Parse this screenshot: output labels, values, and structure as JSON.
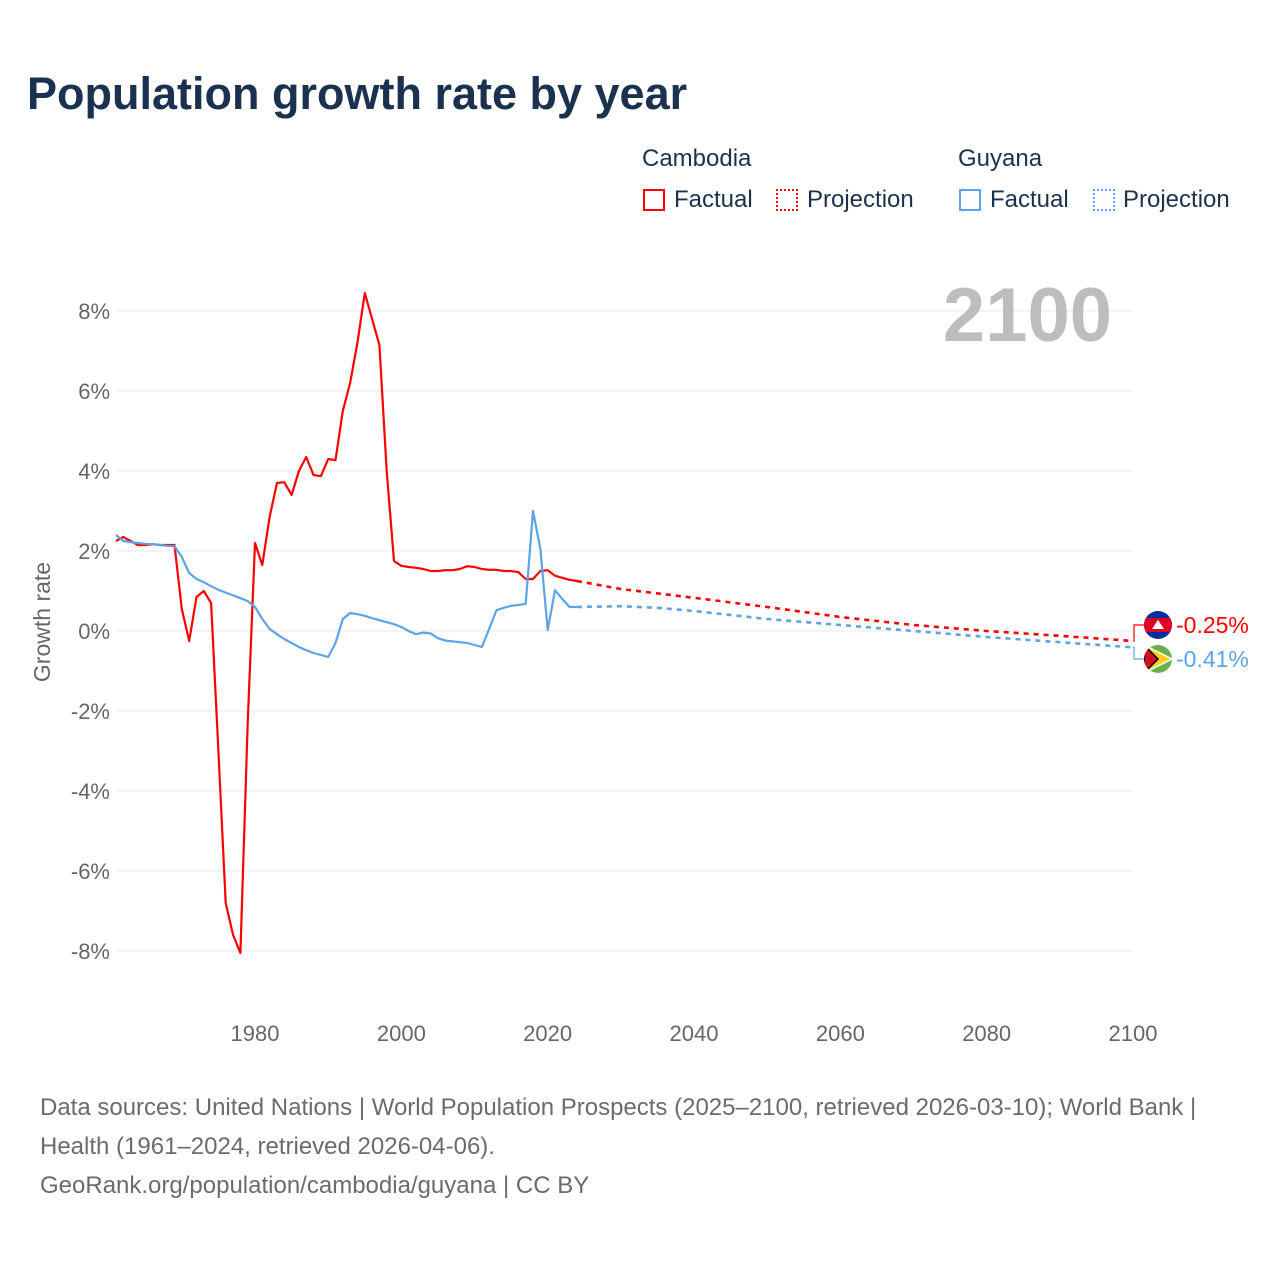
{
  "title": "Population growth rate by year",
  "legend": {
    "groups": [
      {
        "name": "Cambodia",
        "factual": "Factual",
        "projection": "Projection",
        "color": "#ff0000"
      },
      {
        "name": "Guyana",
        "factual": "Factual",
        "projection": "Projection",
        "color": "#5ba4e8"
      }
    ]
  },
  "current_year": "2100",
  "footer": {
    "sources": "Data sources: United Nations | World Population Prospects (2025–2100, retrieved 2026-03-10); World Bank | Health (1961–2024, retrieved 2026-04-06).",
    "link": "GeoRank.org/population/cambodia/guyana | CC BY"
  },
  "chart_data": {
    "type": "line",
    "ylabel": "Growth rate",
    "xlabel": "",
    "xlim": [
      1961,
      2100
    ],
    "ylim": [
      -9,
      9
    ],
    "x_ticks": [
      1980,
      2000,
      2020,
      2040,
      2060,
      2080,
      2100
    ],
    "x_tick_labels": [
      "1980",
      "2000",
      "2020",
      "2040",
      "2060",
      "2080",
      "2100"
    ],
    "y_ticks": [
      8,
      6,
      4,
      2,
      0,
      -2,
      -4,
      -6,
      -8
    ],
    "y_tick_labels": [
      "8%",
      "6%",
      "4%",
      "2%",
      "0%",
      "-2%",
      "-4%",
      "-6%",
      "-8%"
    ],
    "grid": true,
    "series": [
      {
        "name": "Cambodia",
        "color": "#ff0000",
        "end_label": "-0.25%",
        "factual": {
          "x": [
            1961,
            1962,
            1963,
            1964,
            1965,
            1966,
            1967,
            1968,
            1969,
            1970,
            1971,
            1972,
            1973,
            1974,
            1975,
            1976,
            1977,
            1978,
            1979,
            1980,
            1981,
            1982,
            1983,
            1984,
            1985,
            1986,
            1987,
            1988,
            1989,
            1990,
            1991,
            1992,
            1993,
            1994,
            1995,
            1996,
            1997,
            1998,
            1999,
            2000,
            2001,
            2002,
            2003,
            2004,
            2005,
            2006,
            2007,
            2008,
            2009,
            2010,
            2011,
            2012,
            2013,
            2014,
            2015,
            2016,
            2017,
            2018,
            2019,
            2020,
            2021,
            2022,
            2023,
            2024
          ],
          "y": [
            2.25,
            2.35,
            2.25,
            2.15,
            2.15,
            2.17,
            2.15,
            2.15,
            2.15,
            0.55,
            -0.25,
            0.85,
            1.0,
            0.7,
            -3.0,
            -6.8,
            -7.6,
            -8.05,
            -2.3,
            2.2,
            1.65,
            2.85,
            3.7,
            3.72,
            3.4,
            4.0,
            4.35,
            3.9,
            3.87,
            4.3,
            4.27,
            5.5,
            6.2,
            7.2,
            8.45,
            7.8,
            7.15,
            4.0,
            1.75,
            1.63,
            1.6,
            1.58,
            1.55,
            1.5,
            1.5,
            1.52,
            1.52,
            1.55,
            1.62,
            1.6,
            1.55,
            1.53,
            1.53,
            1.5,
            1.5,
            1.47,
            1.3,
            1.3,
            1.5,
            1.52,
            1.38,
            1.33,
            1.28,
            1.25
          ]
        },
        "projection": {
          "x": [
            2024,
            2030,
            2040,
            2050,
            2060,
            2070,
            2080,
            2090,
            2100
          ],
          "y": [
            1.25,
            1.05,
            0.83,
            0.6,
            0.35,
            0.15,
            0.0,
            -0.12,
            -0.25
          ]
        }
      },
      {
        "name": "Guyana",
        "color": "#5ba4e8",
        "end_label": "-0.41%",
        "factual": {
          "x": [
            1961,
            1962,
            1963,
            1964,
            1965,
            1966,
            1967,
            1968,
            1969,
            1970,
            1971,
            1972,
            1973,
            1974,
            1975,
            1976,
            1977,
            1978,
            1979,
            1980,
            1981,
            1982,
            1983,
            1984,
            1985,
            1986,
            1987,
            1988,
            1989,
            1990,
            1991,
            1992,
            1993,
            1994,
            1995,
            1996,
            1997,
            1998,
            1999,
            2000,
            2001,
            2002,
            2003,
            2004,
            2005,
            2006,
            2007,
            2008,
            2009,
            2010,
            2011,
            2012,
            2013,
            2014,
            2015,
            2016,
            2017,
            2018,
            2019,
            2020,
            2021,
            2022,
            2023,
            2024
          ],
          "y": [
            2.4,
            2.25,
            2.22,
            2.2,
            2.18,
            2.17,
            2.15,
            2.13,
            2.12,
            1.85,
            1.45,
            1.3,
            1.22,
            1.12,
            1.03,
            0.96,
            0.89,
            0.82,
            0.75,
            0.6,
            0.3,
            0.05,
            -0.08,
            -0.2,
            -0.3,
            -0.4,
            -0.48,
            -0.55,
            -0.6,
            -0.65,
            -0.3,
            0.3,
            0.45,
            0.42,
            0.38,
            0.32,
            0.27,
            0.22,
            0.17,
            0.1,
            0.0,
            -0.08,
            -0.04,
            -0.06,
            -0.18,
            -0.24,
            -0.26,
            -0.28,
            -0.3,
            -0.35,
            -0.4,
            0.05,
            0.52,
            0.58,
            0.63,
            0.65,
            0.68,
            3.0,
            2.05,
            0.02,
            1.02,
            0.8,
            0.6,
            0.6
          ]
        },
        "projection": {
          "x": [
            2024,
            2030,
            2035,
            2040,
            2050,
            2060,
            2070,
            2080,
            2090,
            2100
          ],
          "y": [
            0.6,
            0.62,
            0.58,
            0.5,
            0.3,
            0.15,
            0.0,
            -0.15,
            -0.28,
            -0.41
          ]
        }
      }
    ]
  }
}
